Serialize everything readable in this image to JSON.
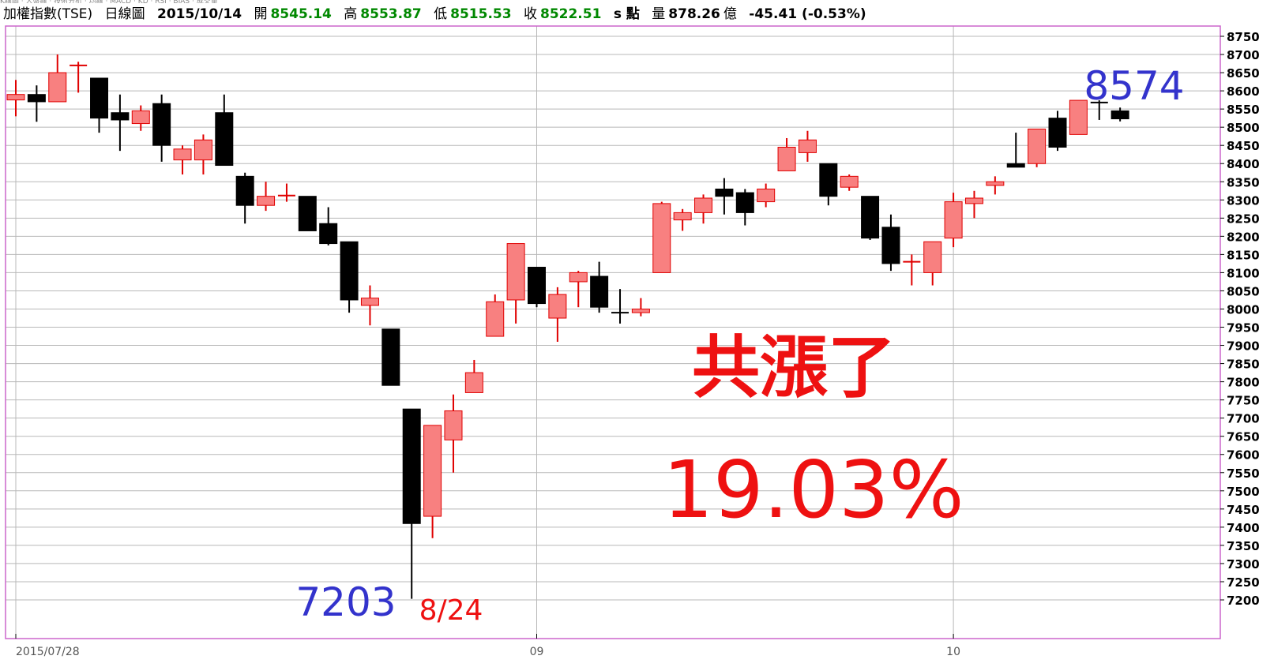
{
  "header": {
    "strip_text": "K線圖 · 大盤線 · 技術分析 · 均線 · MACD · KD · RSI · BIAS · 成交量",
    "index_name": "加權指數(TSE)",
    "chart_kind": "日線圖",
    "date": "2015/10/14",
    "open_label": "開",
    "open": "8545.14",
    "high_label": "高",
    "high": "8553.87",
    "low_label": "低",
    "low": "8515.53",
    "close_label": "收",
    "close": "8522.51",
    "unit": "s 點",
    "volume_label": "量",
    "volume": "878.26",
    "volume_unit": "億",
    "change": "-45.41 (-0.53%)"
  },
  "colors": {
    "up_fill": "#f88080",
    "up_stroke": "#e00000",
    "down_fill": "#000000",
    "frame": "#cc66cc",
    "grid": "#b8b8b8",
    "annotation_blue": "#3333cc",
    "annotation_red": "#ee1111"
  },
  "chart_data": {
    "type": "candlestick",
    "y_range": [
      7180,
      8770
    ],
    "y_ticks": [
      "8750",
      "8700",
      "8650",
      "8600",
      "8550",
      "8500",
      "8450",
      "8400",
      "8350",
      "8300",
      "8250",
      "8200",
      "8150",
      "8100",
      "8050",
      "8000",
      "7950",
      "7900",
      "7850",
      "7800",
      "7750",
      "7700",
      "7650",
      "7600",
      "7550",
      "7500",
      "7450",
      "7400",
      "7350",
      "7300",
      "7250",
      "7200"
    ],
    "x_labels": [
      {
        "index": 0,
        "label": "2015/07/28"
      },
      {
        "index": 25,
        "label": "09"
      },
      {
        "index": 45,
        "label": "10"
      }
    ],
    "grid": true,
    "candles": [
      {
        "o": 8575,
        "h": 8630,
        "l": 8530,
        "c": 8590
      },
      {
        "o": 8590,
        "h": 8615,
        "l": 8515,
        "c": 8570
      },
      {
        "o": 8570,
        "h": 8700,
        "l": 8570,
        "c": 8650
      },
      {
        "o": 8670,
        "h": 8680,
        "l": 8595,
        "c": 8670
      },
      {
        "o": 8635,
        "h": 8635,
        "l": 8485,
        "c": 8525
      },
      {
        "o": 8540,
        "h": 8590,
        "l": 8435,
        "c": 8520
      },
      {
        "o": 8510,
        "h": 8560,
        "l": 8490,
        "c": 8545
      },
      {
        "o": 8565,
        "h": 8590,
        "l": 8405,
        "c": 8450
      },
      {
        "o": 8410,
        "h": 8450,
        "l": 8370,
        "c": 8440
      },
      {
        "o": 8410,
        "h": 8480,
        "l": 8370,
        "c": 8465
      },
      {
        "o": 8540,
        "h": 8590,
        "l": 8395,
        "c": 8395
      },
      {
        "o": 8365,
        "h": 8375,
        "l": 8235,
        "c": 8285
      },
      {
        "o": 8285,
        "h": 8350,
        "l": 8270,
        "c": 8310
      },
      {
        "o": 8312,
        "h": 8345,
        "l": 8295,
        "c": 8312
      },
      {
        "o": 8310,
        "h": 8310,
        "l": 8215,
        "c": 8215
      },
      {
        "o": 8235,
        "h": 8280,
        "l": 8175,
        "c": 8180
      },
      {
        "o": 8185,
        "h": 8185,
        "l": 7990,
        "c": 8025
      },
      {
        "o": 8010,
        "h": 8065,
        "l": 7955,
        "c": 8030
      },
      {
        "o": 7945,
        "h": 7945,
        "l": 7790,
        "c": 7790
      },
      {
        "o": 7725,
        "h": 7725,
        "l": 7203,
        "c": 7410
      },
      {
        "o": 7430,
        "h": 7680,
        "l": 7370,
        "c": 7680
      },
      {
        "o": 7640,
        "h": 7765,
        "l": 7550,
        "c": 7720
      },
      {
        "o": 7770,
        "h": 7860,
        "l": 7770,
        "c": 7825
      },
      {
        "o": 7925,
        "h": 8040,
        "l": 7925,
        "c": 8020
      },
      {
        "o": 8025,
        "h": 8180,
        "l": 7960,
        "c": 8180
      },
      {
        "o": 8115,
        "h": 8115,
        "l": 8005,
        "c": 8015
      },
      {
        "o": 7975,
        "h": 8060,
        "l": 7910,
        "c": 8040
      },
      {
        "o": 8075,
        "h": 8105,
        "l": 8005,
        "c": 8100
      },
      {
        "o": 8090,
        "h": 8130,
        "l": 7990,
        "c": 8005
      },
      {
        "o": 7990,
        "h": 8055,
        "l": 7960,
        "c": 7990
      },
      {
        "o": 7990,
        "h": 8030,
        "l": 7980,
        "c": 8000
      },
      {
        "o": 8100,
        "h": 8295,
        "l": 8100,
        "c": 8290
      },
      {
        "o": 8245,
        "h": 8275,
        "l": 8215,
        "c": 8265
      },
      {
        "o": 8265,
        "h": 8315,
        "l": 8235,
        "c": 8305
      },
      {
        "o": 8330,
        "h": 8360,
        "l": 8260,
        "c": 8310
      },
      {
        "o": 8320,
        "h": 8330,
        "l": 8230,
        "c": 8265
      },
      {
        "o": 8295,
        "h": 8345,
        "l": 8280,
        "c": 8330
      },
      {
        "o": 8380,
        "h": 8470,
        "l": 8380,
        "c": 8445
      },
      {
        "o": 8430,
        "h": 8490,
        "l": 8405,
        "c": 8465
      },
      {
        "o": 8400,
        "h": 8400,
        "l": 8285,
        "c": 8310
      },
      {
        "o": 8335,
        "h": 8370,
        "l": 8325,
        "c": 8365
      },
      {
        "o": 8310,
        "h": 8310,
        "l": 8190,
        "c": 8195
      },
      {
        "o": 8225,
        "h": 8260,
        "l": 8105,
        "c": 8125
      },
      {
        "o": 8130,
        "h": 8150,
        "l": 8065,
        "c": 8130
      },
      {
        "o": 8100,
        "h": 8185,
        "l": 8065,
        "c": 8185
      },
      {
        "o": 8195,
        "h": 8320,
        "l": 8170,
        "c": 8295
      },
      {
        "o": 8290,
        "h": 8325,
        "l": 8250,
        "c": 8305
      },
      {
        "o": 8340,
        "h": 8365,
        "l": 8315,
        "c": 8350
      },
      {
        "o": 8400,
        "h": 8485,
        "l": 8390,
        "c": 8390
      },
      {
        "o": 8400,
        "h": 8495,
        "l": 8390,
        "c": 8495
      },
      {
        "o": 8525,
        "h": 8545,
        "l": 8435,
        "c": 8445
      },
      {
        "o": 8480,
        "h": 8574,
        "l": 8480,
        "c": 8574
      },
      {
        "o": 8568,
        "h": 8574,
        "l": 8520,
        "c": 8568
      },
      {
        "o": 8545,
        "h": 8554,
        "l": 8516,
        "c": 8523
      }
    ],
    "annotations": {
      "high_value": "8574",
      "low_value": "7203",
      "low_date": "8/24",
      "gain_text": "共漲了",
      "gain_pct": "19.03%"
    }
  }
}
